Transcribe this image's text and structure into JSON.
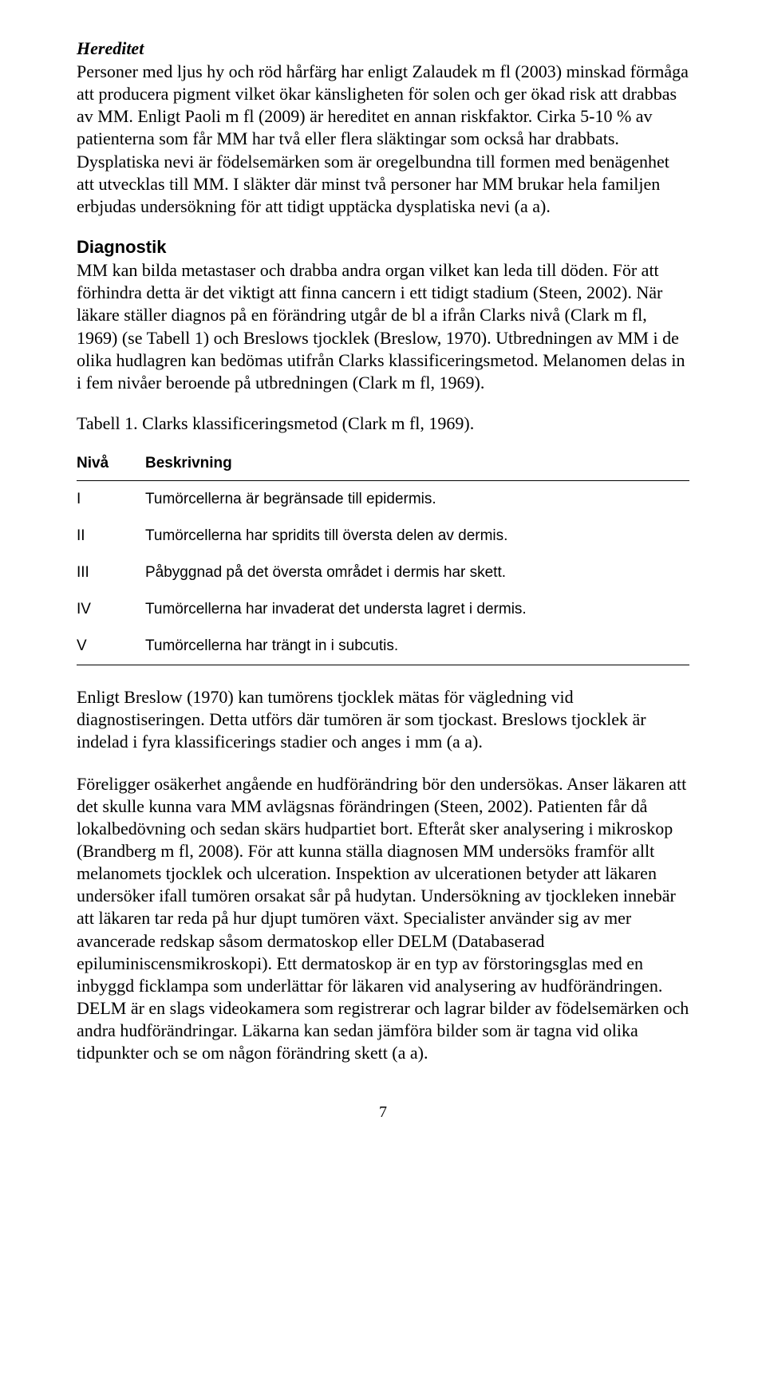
{
  "section1": {
    "title": "Hereditet",
    "body": "Personer med ljus hy och röd hårfärg har enligt Zalaudek m fl (2003) minskad förmåga att producera pigment vilket ökar känsligheten för solen och ger ökad risk att drabbas av MM. Enligt Paoli m fl (2009) är hereditet en annan riskfaktor. Cirka 5-10 % av patienterna som får MM har två eller flera släktingar som också har drabbats. Dysplatiska nevi är födelsemärken som är oregelbundna till formen med benägenhet att utvecklas till MM. I släkter där minst två personer har MM brukar hela familjen erbjudas undersökning för att tidigt upptäcka dysplatiska nevi (a a)."
  },
  "section2": {
    "title": "Diagnostik",
    "body": "MM kan bilda metastaser och drabba andra organ vilket kan leda till döden. För att förhindra detta är det viktigt att finna cancern i ett tidigt stadium (Steen, 2002). När läkare ställer diagnos på en förändring utgår de bl a ifrån Clarks nivå (Clark m fl, 1969) (se Tabell 1) och Breslows tjocklek (Breslow, 1970). Utbredningen av MM i de olika hudlagren kan bedömas utifrån Clarks klassificeringsmetod. Melanomen delas in i fem nivåer beroende på utbredningen (Clark m fl, 1969)."
  },
  "table": {
    "caption": "Tabell 1. Clarks klassificeringsmetod (Clark m fl, 1969).",
    "col1": "Nivå",
    "col2": "Beskrivning",
    "rows": [
      {
        "level": "I",
        "desc": "Tumörcellerna är begränsade till epidermis."
      },
      {
        "level": "II",
        "desc": "Tumörcellerna har spridits till översta delen av dermis."
      },
      {
        "level": "III",
        "desc": "Påbyggnad på det översta området i dermis har skett."
      },
      {
        "level": "IV",
        "desc": "Tumörcellerna har invaderat det understa lagret i dermis."
      },
      {
        "level": "V",
        "desc": "Tumörcellerna har trängt in i subcutis."
      }
    ]
  },
  "section3": {
    "body": "Enligt Breslow (1970) kan tumörens tjocklek mätas för vägledning vid diagnostiseringen. Detta utförs där tumören är som tjockast. Breslows tjocklek är indelad i fyra klassificerings stadier och anges i mm (a a)."
  },
  "section4": {
    "body": "Föreligger osäkerhet angående en hudförändring bör den undersökas. Anser läkaren att det skulle kunna vara MM avlägsnas förändringen (Steen, 2002). Patienten får då lokalbedövning och sedan skärs hudpartiet bort. Efteråt sker analysering i mikroskop (Brandberg m fl, 2008). För att kunna ställa diagnosen MM undersöks framför allt melanomets tjocklek och ulceration. Inspektion av ulcerationen betyder att läkaren undersöker ifall tumören orsakat sår på hudytan. Undersökning av tjockleken innebär att läkaren tar reda på hur djupt tumören växt. Specialister använder sig av mer avancerade redskap såsom dermatoskop eller DELM (Databaserad epiluminiscensmikroskopi). Ett dermatoskop är en typ av förstoringsglas med en inbyggd ficklampa som underlättar för läkaren vid analysering av hudförändringen. DELM är en slags videokamera som registrerar och lagrar bilder av födelsemärken och andra hudförändringar. Läkarna kan sedan jämföra bilder som är tagna vid olika tidpunkter och se om någon förändring skett (a a)."
  },
  "pageNumber": "7"
}
